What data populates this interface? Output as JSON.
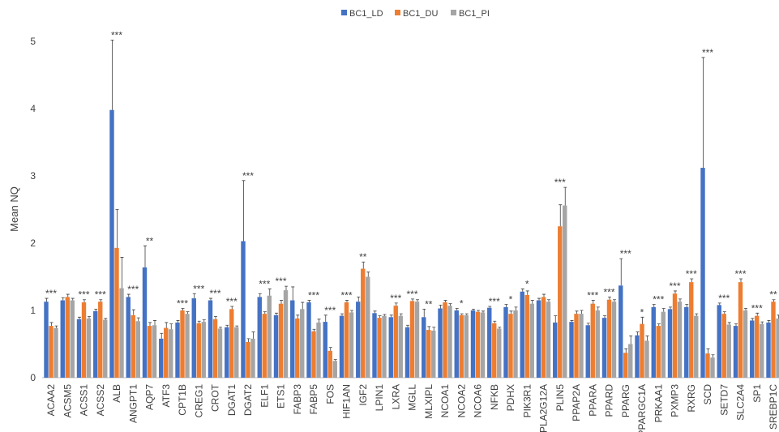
{
  "chart_data": {
    "type": "bar",
    "y_label": "Mean NQ",
    "categories": [
      "ACAA2",
      "ACSM5",
      "ACSS1",
      "ACSS2",
      "ALB",
      "ANGPT1",
      "AQP7",
      "ATF3",
      "CPT1B",
      "CREG1",
      "CROT",
      "DGAT1",
      "DGAT2",
      "ELF1",
      "ETS1",
      "FABP3",
      "FABP5",
      "FOS",
      "HIF1AN",
      "IGF2",
      "LPIN1",
      "LXRA",
      "MGLL",
      "MLXIPL",
      "NCOA1",
      "NCOA2",
      "NCOA6",
      "NFKB",
      "PDHX",
      "PIK3R1",
      "PLA2G12A",
      "PLIN5",
      "PPAP2A",
      "PPARA",
      "PPARD",
      "PPARG",
      "PPARGC1A",
      "PRKAA1",
      "PXMP3",
      "RXRG",
      "SCD",
      "SETD7",
      "SLC2A4",
      "SP1",
      "SREBP1C"
    ],
    "series": [
      {
        "name": "BC1_LD",
        "color": "#4472c4",
        "values": [
          1.13,
          1.15,
          0.87,
          0.99,
          3.98,
          1.2,
          1.64,
          0.58,
          0.82,
          1.18,
          1.15,
          0.75,
          2.03,
          1.2,
          0.93,
          1.15,
          1.12,
          0.83,
          0.92,
          1.13,
          0.96,
          0.9,
          0.75,
          0.9,
          1.03,
          1.0,
          1.0,
          1.04,
          1.05,
          1.28,
          1.15,
          0.82,
          0.83,
          0.78,
          0.89,
          1.37,
          0.63,
          1.05,
          1.02,
          1.05,
          3.12,
          1.08,
          0.77,
          0.85,
          0.82
        ],
        "errors": [
          0.05,
          0.04,
          0.03,
          0.03,
          1.04,
          0.04,
          0.32,
          0.08,
          0.03,
          0.07,
          0.03,
          0.03,
          0.9,
          0.05,
          0.03,
          0.2,
          0.03,
          0.1,
          0.03,
          0.07,
          0.03,
          0.03,
          0.03,
          0.12,
          0.05,
          0.03,
          0.02,
          0.02,
          0.04,
          0.04,
          0.03,
          0.1,
          0.02,
          0.03,
          0.03,
          0.4,
          0.05,
          0.04,
          0.03,
          0.04,
          1.64,
          0.03,
          0.03,
          0.03,
          0.03
        ]
      },
      {
        "name": "BC1_DU",
        "color": "#ed7d31",
        "values": [
          0.77,
          1.2,
          1.12,
          1.13,
          1.93,
          0.93,
          0.77,
          0.74,
          1.0,
          0.81,
          0.87,
          1.02,
          0.53,
          0.95,
          1.1,
          0.88,
          0.69,
          0.4,
          1.12,
          1.62,
          0.89,
          1.07,
          1.14,
          0.71,
          1.12,
          0.93,
          0.98,
          0.81,
          0.95,
          1.23,
          1.2,
          2.25,
          0.95,
          1.1,
          1.16,
          0.37,
          0.8,
          0.77,
          1.25,
          1.42,
          0.36,
          0.95,
          1.42,
          0.92,
          1.13
        ],
        "errors": [
          0.05,
          0.04,
          0.04,
          0.03,
          0.57,
          0.08,
          0.05,
          0.08,
          0.03,
          0.03,
          0.04,
          0.04,
          0.05,
          0.03,
          0.05,
          0.05,
          0.03,
          0.05,
          0.03,
          0.1,
          0.03,
          0.04,
          0.03,
          0.05,
          0.03,
          0.02,
          0.02,
          0.03,
          0.04,
          0.06,
          0.04,
          0.32,
          0.04,
          0.05,
          0.04,
          0.06,
          0.1,
          0.03,
          0.04,
          0.05,
          0.07,
          0.03,
          0.05,
          0.04,
          0.03
        ]
      },
      {
        "name": "BC1_PI",
        "color": "#a5a5a5",
        "values": [
          0.74,
          1.15,
          0.88,
          0.86,
          1.33,
          0.84,
          0.78,
          0.72,
          0.95,
          0.83,
          0.73,
          0.75,
          0.58,
          1.22,
          1.3,
          1.02,
          0.82,
          0.25,
          0.97,
          1.5,
          0.92,
          0.92,
          1.13,
          0.7,
          1.07,
          0.93,
          0.97,
          0.73,
          1.0,
          1.1,
          1.13,
          2.56,
          0.95,
          1.0,
          1.13,
          0.5,
          0.55,
          0.98,
          1.13,
          0.92,
          0.3,
          0.79,
          1.0,
          0.8,
          0.88
        ],
        "errors": [
          0.03,
          0.03,
          0.03,
          0.02,
          0.46,
          0.05,
          0.07,
          0.08,
          0.03,
          0.03,
          0.02,
          0.02,
          0.1,
          0.1,
          0.06,
          0.1,
          0.05,
          0.02,
          0.03,
          0.07,
          0.02,
          0.03,
          0.03,
          0.05,
          0.03,
          0.02,
          0.02,
          0.02,
          0.05,
          0.05,
          0.03,
          0.27,
          0.05,
          0.05,
          0.03,
          0.12,
          0.07,
          0.05,
          0.04,
          0.03,
          0.04,
          0.03,
          0.03,
          0.03,
          0.05
        ]
      }
    ],
    "annotations": [
      "***",
      null,
      "***",
      "***",
      "***",
      "***",
      "**",
      null,
      "***",
      "***",
      "***",
      "***",
      "***",
      "***",
      "***",
      null,
      "***",
      "***",
      "***",
      "**",
      null,
      "***",
      "***",
      "**",
      null,
      "*",
      null,
      "***",
      "*",
      "*",
      null,
      "***",
      null,
      "***",
      "***",
      "***",
      "*",
      "***",
      "***",
      "***",
      "***",
      "***",
      "***",
      "***",
      "**"
    ],
    "ylim": [
      0,
      5
    ],
    "yticks": [
      0,
      1,
      2,
      3,
      4,
      5
    ],
    "grid": false,
    "legend": "top"
  }
}
